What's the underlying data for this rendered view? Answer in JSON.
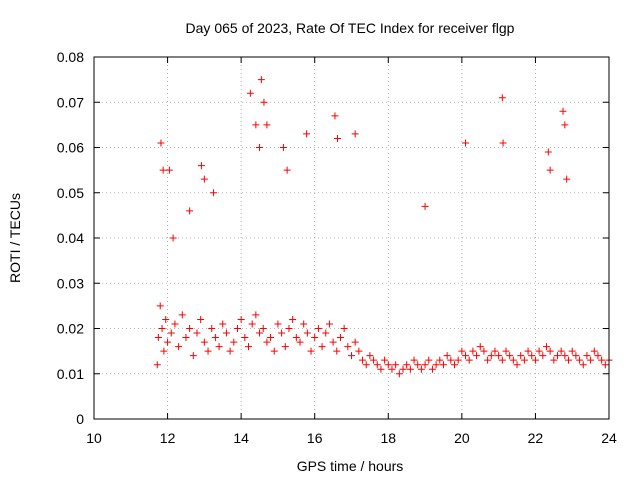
{
  "chart_data": {
    "type": "scatter",
    "title": "Day 065 of 2023, Rate Of TEC Index for receiver flgp",
    "xlabel": "GPS time / hours",
    "ylabel": "ROTI / TECUs",
    "xlim": [
      10,
      24
    ],
    "ylim": [
      0,
      0.08
    ],
    "x_ticks": [
      10,
      12,
      14,
      16,
      18,
      20,
      22,
      24
    ],
    "y_ticks": [
      0,
      0.01,
      0.02,
      0.03,
      0.04,
      0.05,
      0.06,
      0.07,
      0.08
    ],
    "x_tick_labels": [
      "10",
      "12",
      "14",
      "16",
      "18",
      "20",
      "22",
      "24"
    ],
    "y_tick_labels": [
      "0",
      "0.01",
      "0.02",
      "0.03",
      "0.04",
      "0.05",
      "0.06",
      "0.07",
      "0.08"
    ],
    "grid": true,
    "marker": "+",
    "color": "#ff0000",
    "data_range_x": [
      11.7,
      24
    ],
    "series": [
      {
        "name": "ROTI",
        "x": [
          11.72,
          11.75,
          11.8,
          11.85,
          11.9,
          11.95,
          12.0,
          12.1,
          12.2,
          12.3,
          12.4,
          12.5,
          12.6,
          12.7,
          12.8,
          12.9,
          13.0,
          13.1,
          13.2,
          13.3,
          13.4,
          13.5,
          13.6,
          13.7,
          13.8,
          13.9,
          14.0,
          14.1,
          14.2,
          14.3,
          14.4,
          14.5,
          14.6,
          14.7,
          14.8,
          14.9,
          15.0,
          15.1,
          15.2,
          15.3,
          15.4,
          15.5,
          15.6,
          15.7,
          15.8,
          15.9,
          16.0,
          16.1,
          16.2,
          16.3,
          16.4,
          16.5,
          16.6,
          16.7,
          16.8,
          16.9,
          17.0,
          17.1,
          17.2,
          17.3,
          17.4,
          17.5,
          17.6,
          17.7,
          17.8,
          17.9,
          18.0,
          18.1,
          18.2,
          18.3,
          18.4,
          18.5,
          18.6,
          18.7,
          18.8,
          18.9,
          19.0,
          19.1,
          19.2,
          19.3,
          19.4,
          19.5,
          19.6,
          19.7,
          19.8,
          19.9,
          20.0,
          20.1,
          20.2,
          20.3,
          20.4,
          20.5,
          20.6,
          20.7,
          20.8,
          20.9,
          21.0,
          21.1,
          21.2,
          21.3,
          21.4,
          21.5,
          21.6,
          21.7,
          21.8,
          21.9,
          22.0,
          22.1,
          22.2,
          22.3,
          22.4,
          22.5,
          22.6,
          22.7,
          22.8,
          22.9,
          23.0,
          23.1,
          23.2,
          23.3,
          23.4,
          23.5,
          23.6,
          23.7,
          23.8,
          23.9,
          24.0,
          11.82,
          11.88,
          12.05,
          12.15,
          12.92,
          13.0,
          14.25,
          14.4,
          14.5,
          14.55,
          14.62,
          14.7,
          15.15,
          15.25,
          15.78,
          16.55,
          16.62,
          17.1,
          20.1,
          21.1,
          21.12,
          22.35,
          22.4,
          22.75,
          22.8,
          22.85,
          19.0,
          12.6,
          13.25
        ],
        "y": [
          0.012,
          0.018,
          0.025,
          0.02,
          0.015,
          0.022,
          0.017,
          0.019,
          0.021,
          0.016,
          0.023,
          0.018,
          0.02,
          0.014,
          0.019,
          0.022,
          0.017,
          0.015,
          0.02,
          0.018,
          0.016,
          0.021,
          0.019,
          0.015,
          0.017,
          0.02,
          0.022,
          0.018,
          0.016,
          0.021,
          0.023,
          0.019,
          0.02,
          0.017,
          0.018,
          0.015,
          0.021,
          0.019,
          0.016,
          0.02,
          0.022,
          0.018,
          0.017,
          0.021,
          0.019,
          0.015,
          0.018,
          0.02,
          0.016,
          0.019,
          0.021,
          0.017,
          0.015,
          0.018,
          0.02,
          0.016,
          0.014,
          0.017,
          0.015,
          0.013,
          0.012,
          0.014,
          0.013,
          0.012,
          0.011,
          0.013,
          0.012,
          0.011,
          0.012,
          0.01,
          0.011,
          0.012,
          0.011,
          0.013,
          0.012,
          0.011,
          0.012,
          0.013,
          0.011,
          0.012,
          0.013,
          0.012,
          0.014,
          0.013,
          0.012,
          0.013,
          0.015,
          0.014,
          0.013,
          0.015,
          0.014,
          0.016,
          0.015,
          0.013,
          0.014,
          0.015,
          0.014,
          0.013,
          0.015,
          0.014,
          0.013,
          0.012,
          0.014,
          0.013,
          0.015,
          0.014,
          0.013,
          0.015,
          0.014,
          0.016,
          0.015,
          0.013,
          0.014,
          0.015,
          0.014,
          0.013,
          0.015,
          0.014,
          0.013,
          0.012,
          0.014,
          0.013,
          0.015,
          0.014,
          0.013,
          0.012,
          0.013,
          0.061,
          0.055,
          0.055,
          0.04,
          0.056,
          0.053,
          0.072,
          0.065,
          0.06,
          0.075,
          0.07,
          0.065,
          0.06,
          0.055,
          0.063,
          0.067,
          0.062,
          0.063,
          0.061,
          0.071,
          0.061,
          0.059,
          0.055,
          0.068,
          0.065,
          0.053,
          0.047,
          0.046,
          0.05
        ]
      }
    ]
  }
}
